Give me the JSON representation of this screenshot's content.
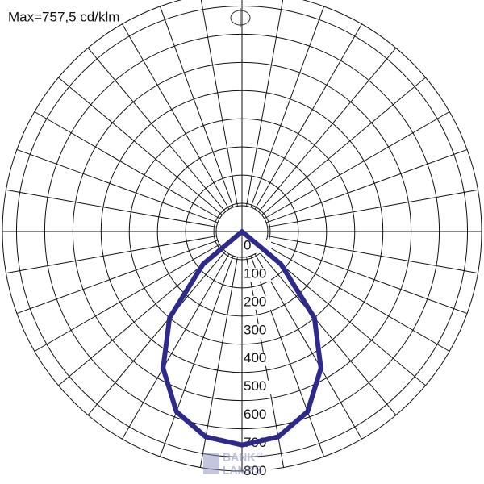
{
  "chart_data": {
    "type": "polar",
    "title": "Max=757,5 cd/klm",
    "x": [
      -60,
      -50,
      -40,
      -30,
      -20,
      -10,
      0,
      10,
      20,
      30,
      40,
      50,
      60
    ],
    "series": [
      {
        "color": "#2e2a8c",
        "values": [
          0,
          180,
          400,
          560,
          680,
          740,
          757.5,
          740,
          680,
          560,
          400,
          180,
          0
        ]
      }
    ],
    "rlim": [
      0,
      850
    ],
    "rticks": [
      0,
      100,
      200,
      300,
      400,
      500,
      600,
      700,
      800
    ],
    "angle_step": 10,
    "grid": true
  },
  "watermark": {
    "line1": "BANK",
    "small": "of",
    "line2": "LAMPS"
  }
}
